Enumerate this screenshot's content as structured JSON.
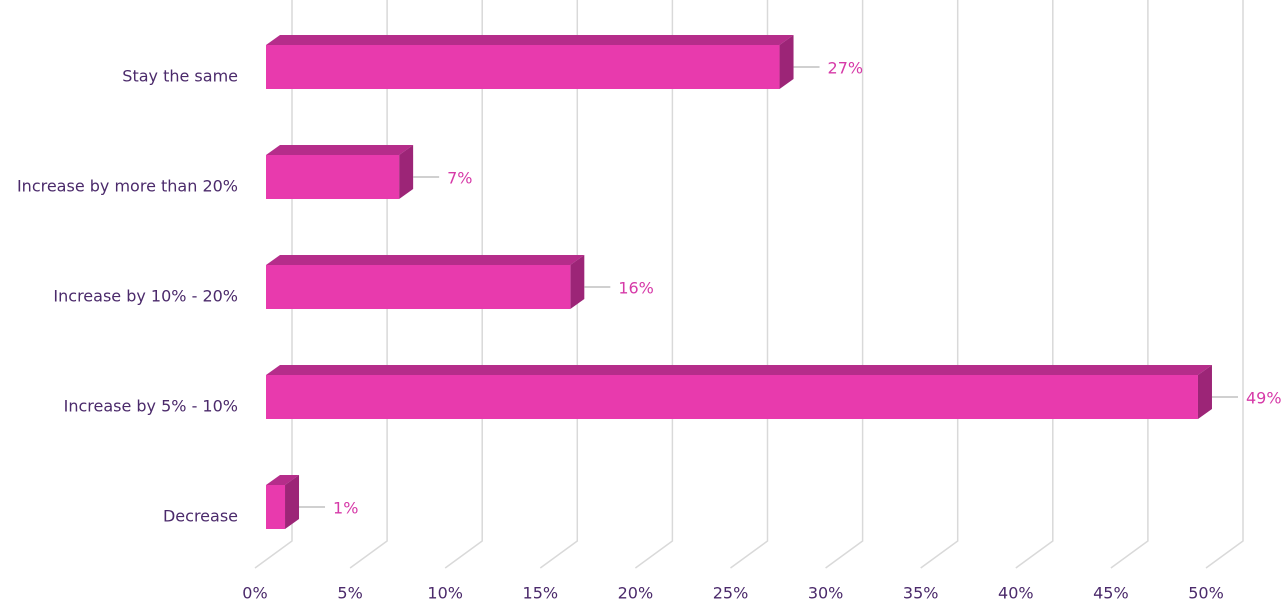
{
  "chart_data": {
    "type": "bar",
    "orientation": "horizontal",
    "categories": [
      "Stay the same",
      "Increase by more than 20%",
      "Increase by 10% - 20%",
      "Increase by 5% - 10%",
      "Decrease"
    ],
    "values": [
      27,
      7,
      16,
      49,
      1
    ],
    "value_labels": [
      "27%",
      "7%",
      "16%",
      "49%",
      "1%"
    ],
    "color": "#e83aad",
    "xlim": [
      0,
      50
    ],
    "xticks": [
      {
        "value": 0,
        "label": "0%"
      },
      {
        "value": 5,
        "label": "5%"
      },
      {
        "value": 10,
        "label": "10%"
      },
      {
        "value": 15,
        "label": "15%"
      },
      {
        "value": 20,
        "label": "20%"
      },
      {
        "value": 25,
        "label": "25%"
      },
      {
        "value": 30,
        "label": "30%"
      },
      {
        "value": 35,
        "label": "35%"
      },
      {
        "value": 40,
        "label": "40%"
      },
      {
        "value": 45,
        "label": "45%"
      },
      {
        "value": 50,
        "label": "50%"
      }
    ],
    "grid": true
  }
}
